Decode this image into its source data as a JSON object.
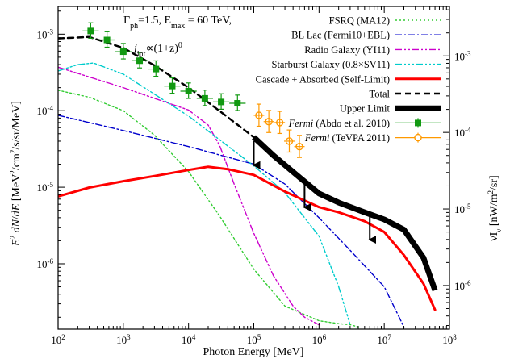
{
  "chart_data": {
    "type": "line",
    "title": "",
    "xlabel": "Photon Energy [MeV]",
    "ylabel": "E² dN/dE [MeV²/cm²/s/sr/MeV]",
    "ylabel_right": "νI_ν [nW/m²/sr]",
    "x_scale": "log",
    "y_scale": "log",
    "xlim": [
      100,
      100000000
    ],
    "ylim": [
      1.4e-07,
      0.0023
    ],
    "grid": false,
    "legend_position": "top-right",
    "x_ticks": [
      {
        "value": 100,
        "base": "10",
        "exp": "2"
      },
      {
        "value": 1000,
        "base": "10",
        "exp": "3"
      },
      {
        "value": 10000,
        "base": "10",
        "exp": "4"
      },
      {
        "value": 100000,
        "base": "10",
        "exp": "5"
      },
      {
        "value": 1000000,
        "base": "10",
        "exp": "6"
      },
      {
        "value": 10000000,
        "base": "10",
        "exp": "7"
      },
      {
        "value": 100000000,
        "base": "10",
        "exp": "8"
      }
    ],
    "y_ticks": [
      {
        "value": 0.001,
        "base": "10",
        "exp": "-3"
      },
      {
        "value": 0.0001,
        "base": "10",
        "exp": "-4"
      },
      {
        "value": 1e-05,
        "base": "10",
        "exp": "-5"
      },
      {
        "value": 1e-06,
        "base": "10",
        "exp": "-6"
      }
    ],
    "y_right_ticks": [
      {
        "value": 0.00052,
        "base": "10",
        "exp": "-3"
      },
      {
        "value": 5.2e-05,
        "base": "10",
        "exp": "-4"
      },
      {
        "value": 5.2e-06,
        "base": "10",
        "exp": "-5"
      },
      {
        "value": 5.2e-07,
        "base": "10",
        "exp": "-6"
      }
    ],
    "annotations": {
      "params": "Γph=1.5, Emax = 60 TeV,",
      "jint": "jint∝(1+z)0"
    },
    "series": [
      {
        "name": "FSRQ (MA12)",
        "color": "#33cc33",
        "dash": "dot",
        "x": [
          100,
          300,
          1000,
          3000,
          10000,
          30000,
          100000,
          300000,
          1000000,
          2000000,
          3000000,
          4000000
        ],
        "y": [
          0.000185,
          0.00015,
          0.0001,
          4.8e-05,
          1.6e-05,
          4.2e-06,
          8.5e-07,
          2.8e-07,
          1.8e-07,
          1.65e-07,
          1.6e-07,
          1.5e-07
        ]
      },
      {
        "name": "BL Lac (Fermi10+EBL)",
        "color": "#0000cc",
        "dash": "dashdot",
        "x": [
          100,
          1000,
          10000,
          100000,
          300000,
          1000000,
          3000000,
          10000000,
          20000000
        ],
        "y": [
          8.7e-05,
          5.5e-05,
          3.4e-05,
          2e-05,
          1.1e-05,
          4e-06,
          1.5e-06,
          5e-07,
          1.5e-07
        ]
      },
      {
        "name": "Radio Galaxy (YI11)",
        "color": "#cc00cc",
        "dash": "dashdotdot",
        "x": [
          100,
          1000,
          10000,
          20000,
          30000,
          50000,
          100000,
          200000,
          400000,
          600000,
          1000000
        ],
        "y": [
          0.00037,
          0.0002,
          0.000102,
          6.5e-05,
          3.5e-05,
          1.1e-05,
          2.5e-06,
          7e-07,
          2.8e-07,
          2e-07,
          1.6e-07
        ]
      },
      {
        "name": "Starburst Galaxy (0.8×SV11)",
        "color": "#00cccc",
        "dash": "dashdotdotdot",
        "x": [
          100,
          200,
          350,
          1000,
          10000,
          100000,
          300000,
          1000000,
          2000000,
          3000000
        ],
        "y": [
          0.00033,
          0.0004,
          0.00042,
          0.0003,
          8.5e-05,
          1.9e-05,
          8.5e-06,
          2.3e-06,
          5e-07,
          1.6e-07
        ]
      },
      {
        "name": "Cascade + Absorbed (Self-Limit)",
        "color": "#ff0000",
        "dash": "solid",
        "x": [
          100,
          300,
          1000,
          3000,
          10000,
          20000,
          40000,
          100000,
          300000,
          1000000,
          2000000,
          5000000,
          10000000,
          20000000,
          40000000,
          60000000
        ],
        "y": [
          7.6e-06,
          9.9e-06,
          1.2e-05,
          1.4e-05,
          1.68e-05,
          1.85e-05,
          1.72e-05,
          1.45e-05,
          8.8e-06,
          5.5e-06,
          4.7e-06,
          3.6e-06,
          2.6e-06,
          1.3e-06,
          5.5e-07,
          2.5e-07
        ]
      },
      {
        "name": "Total",
        "color": "#000000",
        "dash": "dash",
        "x": [
          100,
          300,
          1000,
          3000,
          10000,
          30000,
          100000
        ],
        "y": [
          0.00088,
          0.00092,
          0.00066,
          0.00039,
          0.0002,
          9.9e-05,
          4.5e-05
        ]
      },
      {
        "name": "Upper Limit",
        "color": "#000000",
        "dash": "thick",
        "x": [
          100000,
          200000,
          500000,
          1000000,
          2000000,
          5000000,
          10000000,
          20000000,
          40000000,
          60000000
        ],
        "y": [
          4.5e-05,
          2.6e-05,
          1.35e-05,
          8.3e-06,
          6.3e-06,
          4.7e-06,
          3.8e-06,
          2.8e-06,
          1.2e-06,
          4.5e-07
        ]
      },
      {
        "name": "Fermi (Abdo et al. 2010)",
        "label_italic": "Fermi",
        "label_rest": " (Abdo et al. 2010)",
        "color": "#119911",
        "marker": "square",
        "x": [
          316,
          562,
          1000,
          1778,
          3162,
          5623,
          10000,
          17783,
          31623,
          56234
        ],
        "y": [
          0.0011,
          0.00084,
          0.00059,
          0.00045,
          0.00035,
          0.00021,
          0.00018,
          0.000145,
          0.00013,
          0.000125
        ],
        "xerr_dex": 0.125,
        "yerr_frac": 0.28
      },
      {
        "name": "Fermi (TeVPA 2011)",
        "label_italic": "Fermi",
        "label_rest": " (TeVPA 2011)",
        "color": "#ff9900",
        "marker": "circle-open",
        "x": [
          120000,
          170000,
          250000,
          350000,
          500000
        ],
        "y": [
          8.7e-05,
          7.2e-05,
          7e-05,
          4e-05,
          3.4e-05
        ],
        "xerr_dex": 0.08,
        "yerr_frac": 0.4
      }
    ],
    "upper_limit_arrows": [
      {
        "x": 100000,
        "y_from": 4e-05,
        "y_to": 1.6e-05
      },
      {
        "x": 600000,
        "y_from": 1.2e-05,
        "y_to": 4.5e-06
      },
      {
        "x": 6000000,
        "y_from": 4.2e-06,
        "y_to": 1.7e-06
      }
    ]
  }
}
